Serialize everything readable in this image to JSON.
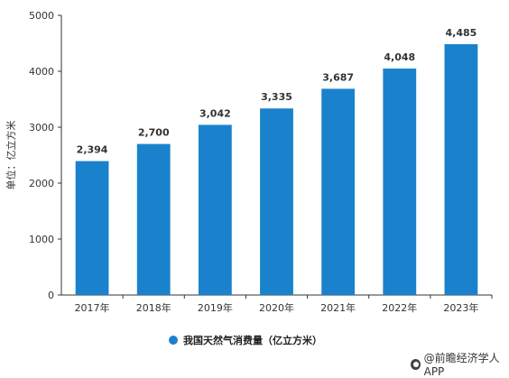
{
  "chart_data": {
    "type": "bar",
    "categories": [
      "2017年",
      "2018年",
      "2019年",
      "2020年",
      "2021年",
      "2022年",
      "2023年"
    ],
    "series": [
      {
        "name": "我国天然气消费量（亿立方米）",
        "values": [
          2394,
          2700,
          3042,
          3335,
          3687,
          4048,
          4485
        ]
      }
    ],
    "data_labels": [
      "2,394",
      "2,700",
      "3,042",
      "3,335",
      "3,687",
      "4,048",
      "4,485"
    ],
    "ylabel": "单位：亿立方米",
    "ylim": [
      0,
      5000
    ],
    "yticks": [
      "0",
      "1000",
      "2000",
      "3000",
      "4000",
      "5000"
    ],
    "ytick_values": [
      0,
      1000,
      2000,
      3000,
      4000,
      5000
    ],
    "grid": false,
    "legend_position": "bottom-center",
    "bar_color": "#1a82cc"
  },
  "source": {
    "icon": "source-icon",
    "text": "@前瞻经济学人APP"
  }
}
